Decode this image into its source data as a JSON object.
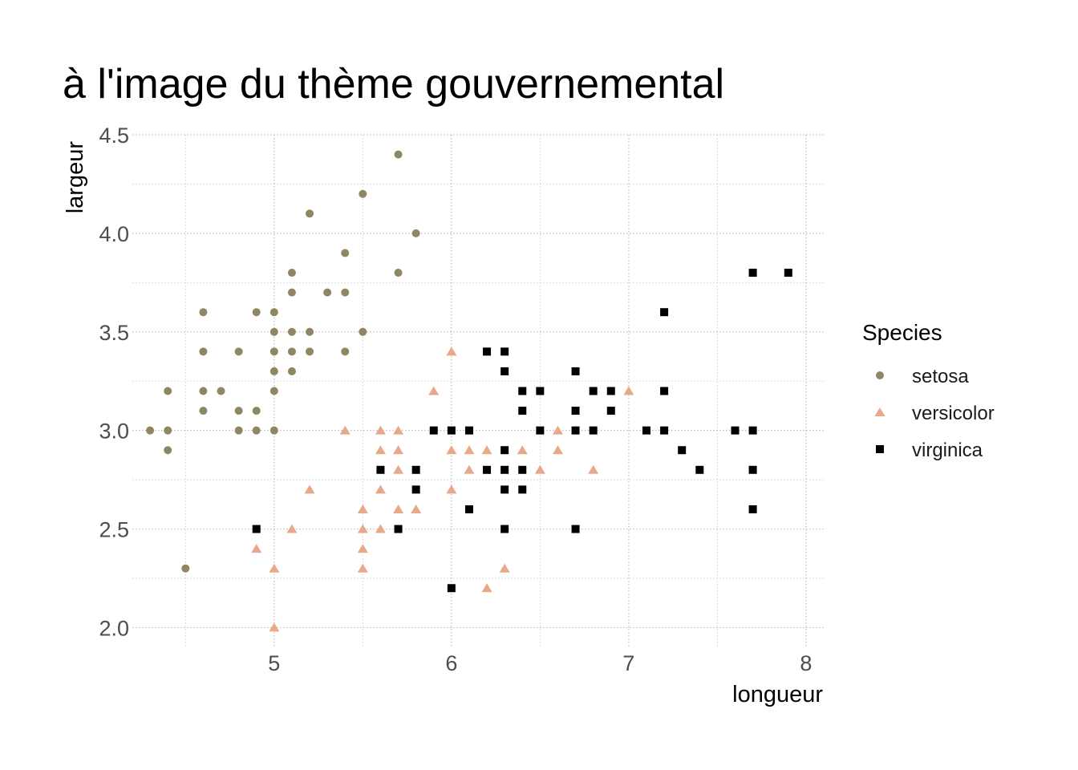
{
  "chart_data": {
    "type": "scatter",
    "title": "à l'image du thème gouvernemental",
    "xlabel": "longueur",
    "ylabel": "largeur",
    "xlim": [
      4.2,
      8.1
    ],
    "ylim": [
      1.9,
      4.5
    ],
    "x_ticks": [
      5,
      6,
      7,
      8
    ],
    "x_tick_labels": [
      "5",
      "6",
      "7",
      "8"
    ],
    "x_minor_ticks": [
      4.5,
      5.5,
      6.5,
      7.5
    ],
    "y_ticks": [
      2.0,
      2.5,
      3.0,
      3.5,
      4.0,
      4.5
    ],
    "y_tick_labels": [
      "2.0",
      "2.5",
      "3.0",
      "3.5",
      "4.0",
      "4.5"
    ],
    "y_minor_ticks": [
      2.25,
      2.75,
      3.25,
      3.75,
      4.25
    ],
    "grid": true,
    "legend": {
      "title": "Species",
      "position": "right"
    },
    "series": [
      {
        "name": "setosa",
        "shape": "circle",
        "color": "#8f8763",
        "points": [
          [
            5.7,
            4.4
          ],
          [
            5.5,
            4.2
          ],
          [
            5.2,
            4.1
          ],
          [
            5.8,
            4.0
          ],
          [
            5.4,
            3.9
          ],
          [
            5.1,
            3.8
          ],
          [
            5.7,
            3.8
          ],
          [
            5.1,
            3.7
          ],
          [
            5.3,
            3.7
          ],
          [
            5.4,
            3.7
          ],
          [
            4.6,
            3.6
          ],
          [
            4.9,
            3.6
          ],
          [
            5.0,
            3.6
          ],
          [
            5.0,
            3.5
          ],
          [
            5.1,
            3.5
          ],
          [
            5.2,
            3.5
          ],
          [
            5.5,
            3.5
          ],
          [
            4.6,
            3.4
          ],
          [
            4.8,
            3.4
          ],
          [
            5.0,
            3.4
          ],
          [
            5.1,
            3.4
          ],
          [
            5.2,
            3.4
          ],
          [
            5.4,
            3.4
          ],
          [
            5.0,
            3.3
          ],
          [
            5.1,
            3.3
          ],
          [
            4.4,
            3.2
          ],
          [
            4.6,
            3.2
          ],
          [
            4.7,
            3.2
          ],
          [
            5.0,
            3.2
          ],
          [
            4.6,
            3.1
          ],
          [
            4.8,
            3.1
          ],
          [
            4.9,
            3.1
          ],
          [
            4.3,
            3.0
          ],
          [
            4.4,
            3.0
          ],
          [
            4.8,
            3.0
          ],
          [
            4.9,
            3.0
          ],
          [
            5.0,
            3.0
          ],
          [
            4.4,
            2.9
          ],
          [
            4.5,
            2.3
          ]
        ]
      },
      {
        "name": "versicolor",
        "shape": "triangle",
        "color": "#e8a98a",
        "points": [
          [
            6.0,
            3.4
          ],
          [
            5.9,
            3.2
          ],
          [
            7.0,
            3.2
          ],
          [
            5.4,
            3.0
          ],
          [
            5.6,
            3.0
          ],
          [
            5.7,
            3.0
          ],
          [
            6.6,
            3.0
          ],
          [
            5.6,
            2.9
          ],
          [
            5.7,
            2.9
          ],
          [
            6.0,
            2.9
          ],
          [
            6.1,
            2.9
          ],
          [
            6.2,
            2.9
          ],
          [
            6.4,
            2.9
          ],
          [
            6.6,
            2.9
          ],
          [
            5.7,
            2.8
          ],
          [
            6.1,
            2.8
          ],
          [
            6.5,
            2.8
          ],
          [
            6.8,
            2.8
          ],
          [
            5.2,
            2.7
          ],
          [
            5.6,
            2.7
          ],
          [
            6.0,
            2.7
          ],
          [
            5.5,
            2.6
          ],
          [
            5.7,
            2.6
          ],
          [
            5.8,
            2.6
          ],
          [
            5.1,
            2.5
          ],
          [
            5.5,
            2.5
          ],
          [
            5.6,
            2.5
          ],
          [
            4.9,
            2.4
          ],
          [
            5.5,
            2.4
          ],
          [
            5.0,
            2.3
          ],
          [
            5.5,
            2.3
          ],
          [
            6.3,
            2.3
          ],
          [
            6.2,
            2.2
          ],
          [
            5.0,
            2.0
          ]
        ]
      },
      {
        "name": "virginica",
        "shape": "square",
        "color": "#000000",
        "points": [
          [
            7.7,
            3.8
          ],
          [
            7.9,
            3.8
          ],
          [
            7.2,
            3.6
          ],
          [
            6.2,
            3.4
          ],
          [
            6.3,
            3.4
          ],
          [
            6.3,
            3.3
          ],
          [
            6.7,
            3.3
          ],
          [
            6.4,
            3.2
          ],
          [
            6.5,
            3.2
          ],
          [
            6.8,
            3.2
          ],
          [
            6.9,
            3.2
          ],
          [
            7.2,
            3.2
          ],
          [
            6.4,
            3.1
          ],
          [
            6.7,
            3.1
          ],
          [
            6.9,
            3.1
          ],
          [
            5.9,
            3.0
          ],
          [
            6.0,
            3.0
          ],
          [
            6.1,
            3.0
          ],
          [
            6.5,
            3.0
          ],
          [
            6.7,
            3.0
          ],
          [
            6.8,
            3.0
          ],
          [
            7.1,
            3.0
          ],
          [
            7.2,
            3.0
          ],
          [
            7.6,
            3.0
          ],
          [
            7.7,
            3.0
          ],
          [
            6.3,
            2.9
          ],
          [
            7.3,
            2.9
          ],
          [
            5.6,
            2.8
          ],
          [
            5.8,
            2.8
          ],
          [
            6.2,
            2.8
          ],
          [
            6.3,
            2.8
          ],
          [
            6.4,
            2.8
          ],
          [
            7.4,
            2.8
          ],
          [
            7.7,
            2.8
          ],
          [
            5.8,
            2.7
          ],
          [
            6.3,
            2.7
          ],
          [
            6.4,
            2.7
          ],
          [
            6.1,
            2.6
          ],
          [
            7.7,
            2.6
          ],
          [
            4.9,
            2.5
          ],
          [
            5.7,
            2.5
          ],
          [
            6.3,
            2.5
          ],
          [
            6.7,
            2.5
          ],
          [
            6.0,
            2.2
          ]
        ]
      }
    ]
  }
}
